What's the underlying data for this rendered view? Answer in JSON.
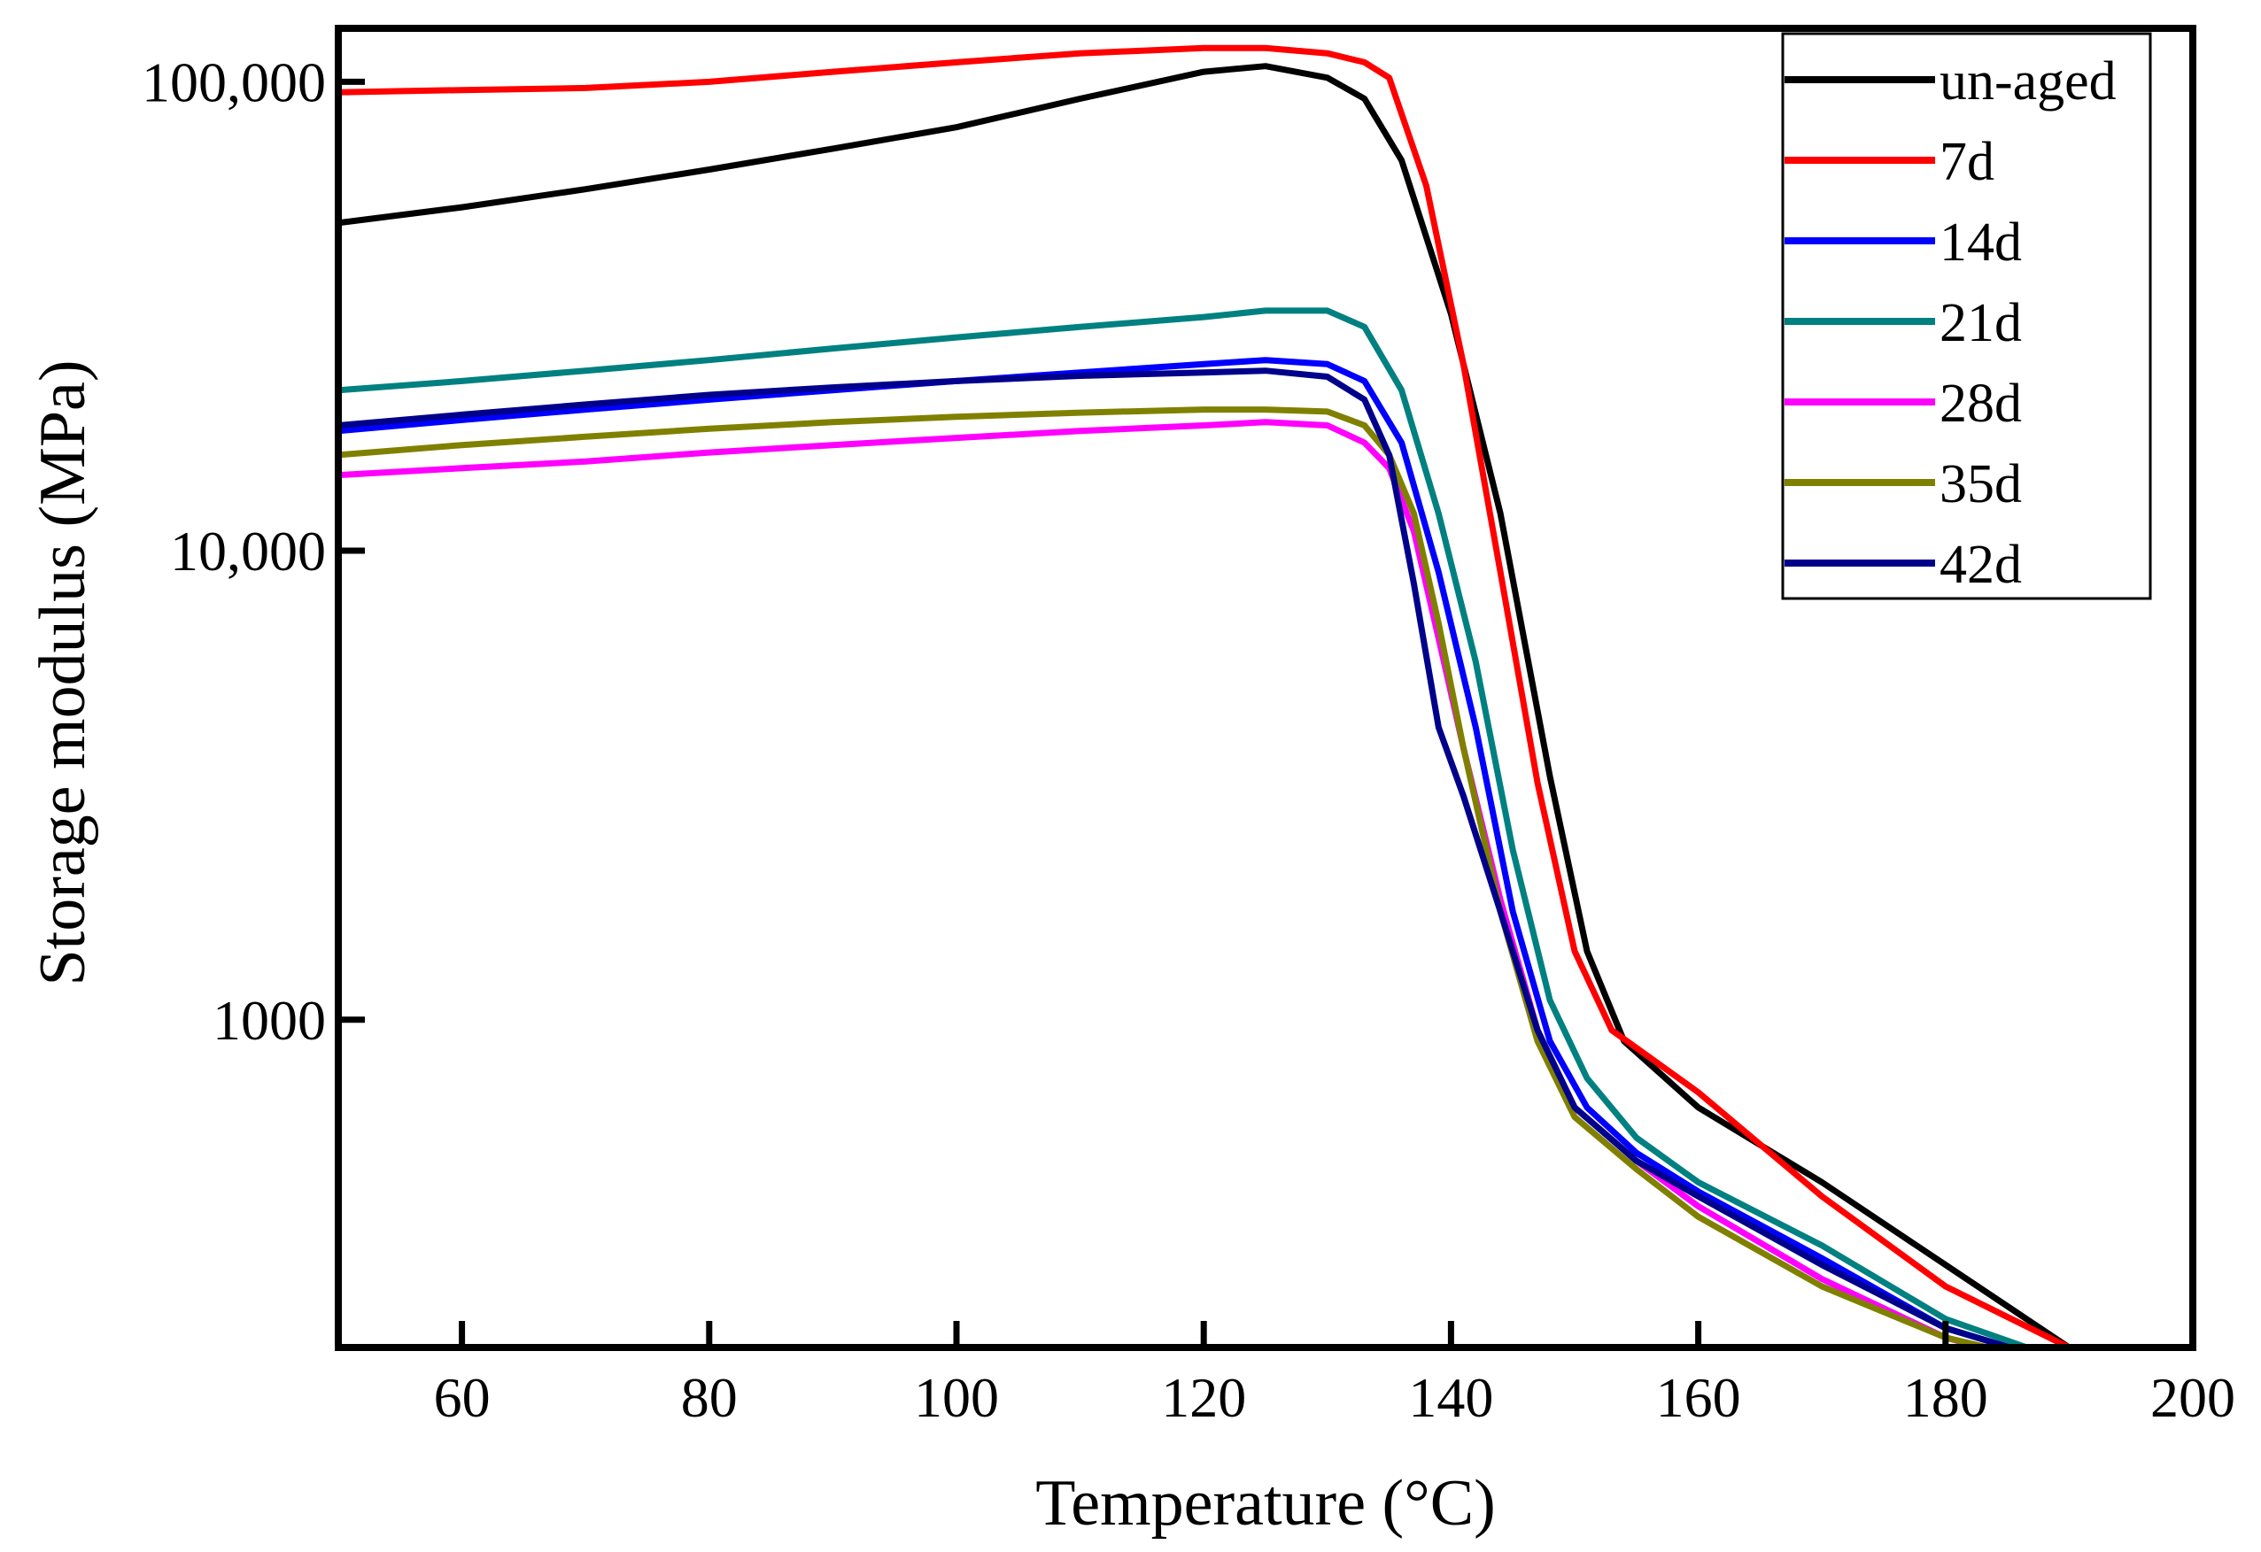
{
  "chart_data": {
    "type": "line",
    "title": "",
    "xlabel": "Temperature (°C)",
    "ylabel": "Storage modulus (MPa)",
    "xlim": [
      50,
      200
    ],
    "ylim": [
      200,
      130000
    ],
    "yscale": "log",
    "x_ticks": [
      {
        "value": 60,
        "label": "60"
      },
      {
        "value": 80,
        "label": "80"
      },
      {
        "value": 100,
        "label": "100"
      },
      {
        "value": 120,
        "label": "120"
      },
      {
        "value": 140,
        "label": "140"
      },
      {
        "value": 160,
        "label": "160"
      },
      {
        "value": 180,
        "label": "180"
      },
      {
        "value": 200,
        "label": "200"
      }
    ],
    "y_ticks": [
      {
        "value": 1000,
        "label": "1000"
      },
      {
        "value": 10000,
        "label": "10,000"
      },
      {
        "value": 100000,
        "label": "100,000"
      }
    ],
    "legend_position": "top-right",
    "series": [
      {
        "name": "un-aged",
        "color": "#000000",
        "x": [
          50,
          60,
          70,
          80,
          90,
          100,
          110,
          120,
          125,
          130,
          133,
          136,
          140,
          144,
          148,
          151,
          154,
          160,
          170,
          180,
          190
        ],
        "y": [
          50000,
          54000,
          59000,
          65000,
          72000,
          80000,
          92000,
          105000,
          108000,
          102000,
          92000,
          68000,
          32000,
          12000,
          3300,
          1400,
          900,
          650,
          450,
          300,
          200
        ]
      },
      {
        "name": "7d",
        "color": "#ff0000",
        "x": [
          50,
          60,
          70,
          80,
          90,
          100,
          110,
          120,
          125,
          130,
          133,
          135,
          138,
          141,
          144,
          147,
          150,
          153,
          160,
          170,
          180,
          190
        ],
        "y": [
          95000,
          96000,
          97000,
          100000,
          105000,
          110000,
          115000,
          118000,
          118000,
          115000,
          110000,
          102000,
          60000,
          25000,
          9000,
          3200,
          1400,
          950,
          700,
          420,
          270,
          200
        ]
      },
      {
        "name": "14d",
        "color": "#0000ff",
        "x": [
          50,
          60,
          70,
          80,
          90,
          100,
          110,
          120,
          125,
          130,
          133,
          136,
          139,
          142,
          145,
          148,
          151,
          155,
          160,
          170,
          180,
          188
        ],
        "y": [
          18000,
          19000,
          20000,
          21000,
          22000,
          23000,
          24000,
          25000,
          25500,
          25000,
          23000,
          17000,
          9000,
          4200,
          1700,
          900,
          650,
          520,
          430,
          310,
          220,
          190
        ]
      },
      {
        "name": "21d",
        "color": "#008080",
        "x": [
          50,
          60,
          70,
          80,
          90,
          100,
          110,
          120,
          125,
          130,
          133,
          136,
          139,
          142,
          145,
          148,
          151,
          155,
          160,
          170,
          180,
          189
        ],
        "y": [
          22000,
          23000,
          24200,
          25500,
          27000,
          28500,
          30000,
          31500,
          32500,
          32500,
          30000,
          22000,
          12000,
          5800,
          2300,
          1100,
          750,
          560,
          450,
          330,
          230,
          190
        ]
      },
      {
        "name": "28d",
        "color": "#ff00ff",
        "x": [
          50,
          60,
          70,
          80,
          90,
          100,
          110,
          120,
          125,
          130,
          133,
          135,
          137,
          139,
          141,
          144,
          147,
          150,
          155,
          160,
          170,
          180,
          186
        ],
        "y": [
          14500,
          15000,
          15500,
          16200,
          16800,
          17400,
          18000,
          18500,
          18800,
          18500,
          17000,
          15000,
          11000,
          6500,
          3800,
          1800,
          950,
          650,
          500,
          400,
          280,
          210,
          190
        ]
      },
      {
        "name": "35d",
        "color": "#808000",
        "x": [
          50,
          60,
          70,
          80,
          90,
          100,
          110,
          120,
          125,
          130,
          133,
          135,
          137,
          139,
          141,
          144,
          147,
          150,
          155,
          160,
          170,
          180,
          187
        ],
        "y": [
          16000,
          16800,
          17500,
          18200,
          18800,
          19300,
          19700,
          20000,
          20000,
          19800,
          18500,
          16000,
          12000,
          7000,
          3800,
          1700,
          900,
          620,
          480,
          380,
          270,
          210,
          190
        ]
      },
      {
        "name": "42d",
        "color": "#00008b",
        "x": [
          50,
          60,
          70,
          80,
          90,
          100,
          110,
          120,
          125,
          130,
          133,
          135,
          137,
          139,
          141,
          144,
          147,
          150,
          155,
          160,
          170,
          180,
          188
        ],
        "y": [
          18500,
          19500,
          20500,
          21500,
          22300,
          23000,
          23600,
          24000,
          24200,
          23500,
          21000,
          16000,
          8500,
          4200,
          3000,
          1700,
          950,
          650,
          500,
          420,
          300,
          220,
          190
        ]
      }
    ]
  }
}
